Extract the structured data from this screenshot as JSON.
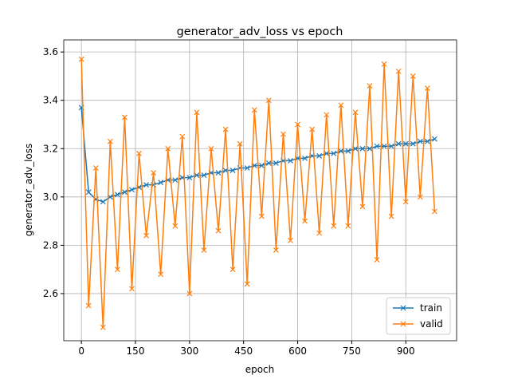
{
  "chart_data": {
    "type": "line",
    "title": "generator_adv_loss vs epoch",
    "x_label": "epoch",
    "y_label": "generator_adv_loss",
    "x": [
      0,
      20,
      40,
      60,
      80,
      100,
      120,
      140,
      160,
      180,
      200,
      220,
      240,
      260,
      280,
      300,
      320,
      340,
      360,
      380,
      400,
      420,
      440,
      460,
      480,
      500,
      520,
      540,
      560,
      580,
      600,
      620,
      640,
      660,
      680,
      700,
      720,
      740,
      760,
      780,
      800,
      820,
      840,
      860,
      880,
      900,
      920,
      940,
      960,
      980
    ],
    "series": [
      {
        "name": "train",
        "color": "#1f77b4",
        "values": [
          3.37,
          3.02,
          2.99,
          2.98,
          3.0,
          3.01,
          3.02,
          3.03,
          3.04,
          3.05,
          3.05,
          3.06,
          3.07,
          3.07,
          3.08,
          3.08,
          3.09,
          3.09,
          3.1,
          3.1,
          3.11,
          3.11,
          3.12,
          3.12,
          3.13,
          3.13,
          3.14,
          3.14,
          3.15,
          3.15,
          3.16,
          3.16,
          3.17,
          3.17,
          3.18,
          3.18,
          3.19,
          3.19,
          3.2,
          3.2,
          3.2,
          3.21,
          3.21,
          3.21,
          3.22,
          3.22,
          3.22,
          3.23,
          3.23,
          3.24
        ]
      },
      {
        "name": "valid",
        "color": "#ff7f0e",
        "values": [
          3.57,
          2.55,
          3.12,
          2.46,
          3.23,
          2.7,
          3.33,
          2.62,
          3.18,
          2.84,
          3.1,
          2.68,
          3.2,
          2.88,
          3.25,
          2.6,
          3.35,
          2.78,
          3.2,
          2.86,
          3.28,
          2.7,
          3.22,
          2.64,
          3.36,
          2.92,
          3.4,
          2.78,
          3.26,
          2.82,
          3.3,
          2.9,
          3.28,
          2.85,
          3.34,
          2.88,
          3.38,
          2.88,
          3.35,
          2.96,
          3.46,
          2.74,
          3.55,
          2.92,
          3.52,
          2.98,
          3.5,
          3.0,
          3.45,
          2.94
        ]
      }
    ],
    "xlim": [
      -49,
      1041
    ],
    "ylim": [
      2.405,
      3.65
    ],
    "xticks": [
      0,
      150,
      300,
      450,
      600,
      750,
      900
    ],
    "yticks": [
      2.6,
      2.8,
      {
        "value": 3,
        "label": "3.0"
      },
      3.2,
      3.4,
      3.6
    ],
    "grid": true,
    "legend": "lower right"
  }
}
